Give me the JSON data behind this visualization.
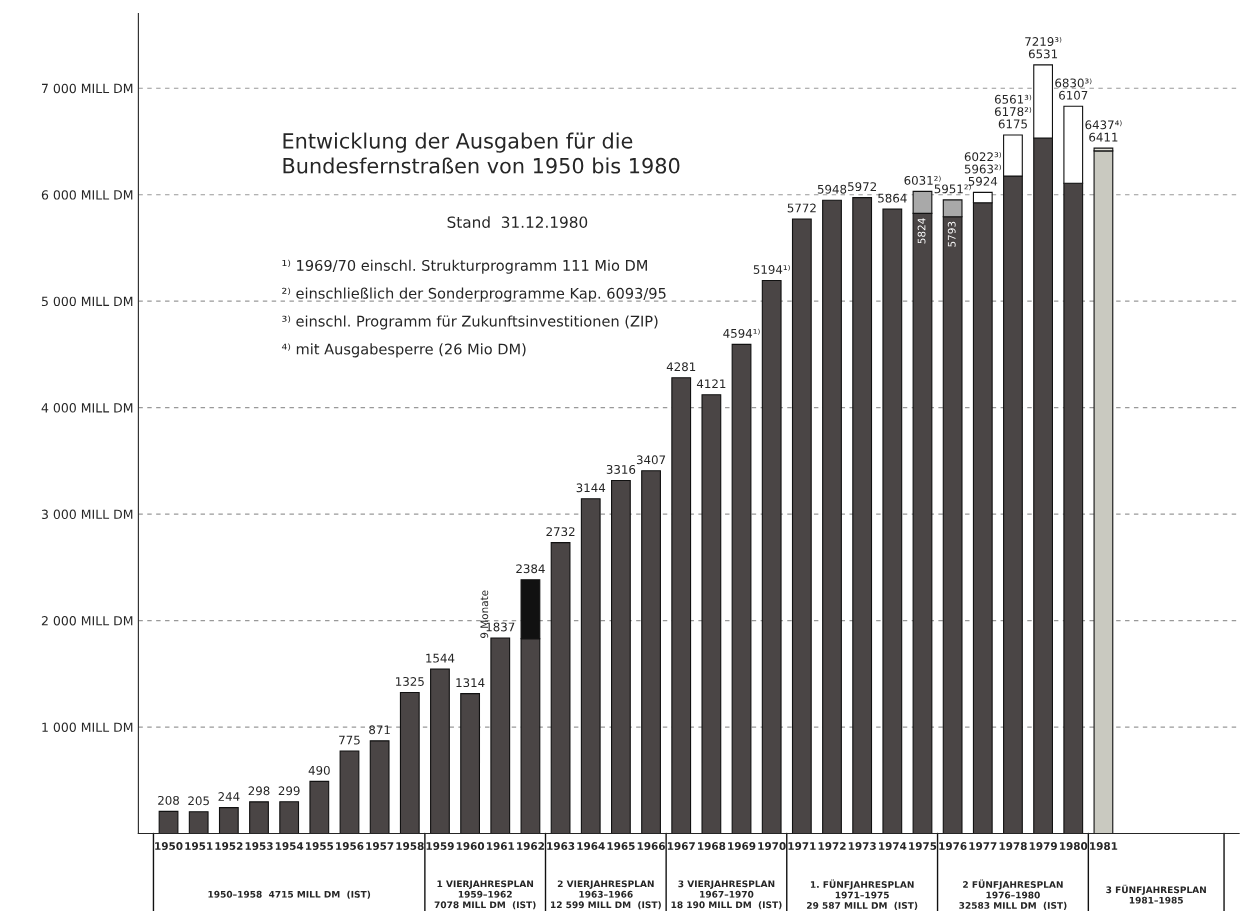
{
  "chart_data": {
    "type": "bar",
    "stacked": true,
    "title": "Entwicklung der Ausgaben für die\nBundesfernstraßen von 1950 bis 1980",
    "subtitle": "Stand  31.12.1980",
    "categories": [
      "1950",
      "1951",
      "1952",
      "1953",
      "1954",
      "1955",
      "1956",
      "1957",
      "1958",
      "1959",
      "1960",
      "1961",
      "1962",
      "1963",
      "1964",
      "1965",
      "1966",
      "1967",
      "1968",
      "1969",
      "1970",
      "1971",
      "1972",
      "1973",
      "1974",
      "1975",
      "1976",
      "1977",
      "1978",
      "1979",
      "1980",
      "1981"
    ],
    "series": [
      {
        "colors": [
          "#4a4545",
          "#4a4545",
          "#4a4545",
          "#4a4545",
          "#4a4545",
          "#4a4545",
          "#4a4545",
          "#4a4545",
          "#4a4545",
          "#4a4545",
          "#4a4545",
          "#4a4545",
          "#4a4545",
          "#4a4545",
          "#4a4545",
          "#4a4545",
          "#4a4545",
          "#4a4545",
          "#4a4545",
          "#4a4545",
          "#4a4545",
          "#4a4545",
          "#4a4545",
          "#4a4545",
          "#4a4545",
          "#4a4545",
          "#4a4545",
          "#4a4545",
          "#4a4545",
          "#4a4545",
          "#4a4545",
          "#c9c9c0"
        ],
        "values": [
          208,
          205,
          244,
          298,
          299,
          490,
          775,
          871,
          1325,
          1544,
          1314,
          1837,
          1830,
          2732,
          3144,
          3316,
          3407,
          4281,
          4121,
          4594,
          5194,
          5772,
          5948,
          5972,
          5864,
          5824,
          5793,
          5924,
          6175,
          6531,
          6107,
          6411
        ],
        "value_labels": [
          "208",
          "205",
          "244",
          "298",
          "299",
          "490",
          "775",
          "871",
          "1325",
          "1544",
          "1314",
          "1837",
          null,
          "2732",
          "3144",
          "3316",
          "3407",
          "4281",
          "4121",
          "4594¹⁾",
          "5194¹⁾",
          "5772",
          "5948",
          "5972",
          "5864",
          "5824",
          "5793",
          null,
          null,
          null,
          null,
          null
        ]
      },
      {
        "colors": [
          "#ffffff",
          "#ffffff",
          "#ffffff",
          "#ffffff",
          "#ffffff",
          "#ffffff",
          "#ffffff",
          "#ffffff",
          "#ffffff",
          "#ffffff",
          "#ffffff",
          "#ffffff",
          "#111111",
          "#ffffff",
          "#ffffff",
          "#ffffff",
          "#ffffff",
          "#ffffff",
          "#ffffff",
          "#ffffff",
          "#ffffff",
          "#ffffff",
          "#ffffff",
          "#ffffff",
          "#ffffff",
          "#a9a9a9",
          "#a9a9a9",
          "#ffffff",
          "#ffffff",
          "#ffffff",
          "#ffffff",
          "#e8e8e0"
        ],
        "values": [
          null,
          null,
          null,
          null,
          null,
          null,
          null,
          null,
          null,
          null,
          null,
          null,
          554,
          null,
          null,
          null,
          null,
          null,
          null,
          null,
          null,
          null,
          null,
          null,
          null,
          207,
          158,
          98,
          386,
          688,
          723,
          26
        ]
      }
    ],
    "ylim": [
      0,
      7700
    ],
    "yticks": [
      {
        "value": 1000,
        "label": "1 000 MILL DM"
      },
      {
        "value": 2000,
        "label": "2 000 MILL DM"
      },
      {
        "value": 3000,
        "label": "3 000 MILL DM"
      },
      {
        "value": 4000,
        "label": "4 000 MILL DM"
      },
      {
        "value": 5000,
        "label": "5 000 MILL DM"
      },
      {
        "value": 6000,
        "label": "6 000 MILL DM"
      },
      {
        "value": 7000,
        "label": "7 000 MILL DM"
      }
    ],
    "grid": "y",
    "legend": false,
    "annotations": [
      "¹⁾ 1969/70 einschl. Strukturprogramm 111 Mio DM",
      "²⁾ einschließlich der Sonderprogramme Kap. 6093/95",
      "³⁾ einschl. Programm für Zukunftsinvestitionen (ZIP)",
      "⁴⁾ mit Ausgabesperre (26 Mio DM)",
      "9 Monate",
      "1950–1958  4715 MILL DM  (IST)",
      "1 VIERJAHRESPLAN\n1959–1962\n7078 MILL DM  (IST)",
      "2 VIERJAHRESPLAN\n1963–1966\n12 599 MILL DM  (IST)",
      "3 VIERJAHRESPLAN\n1967–1970\n18 190 MILL DM  (IST)",
      "1. FÜNFJAHRESPLAN\n1971–1975\n29 587 MILL DM  (IST)",
      "2 FÜNFJAHRESPLAN\n1976–1980\n32583 MILL DM  (IST)",
      "3 FÜNFJAHRESPLAN\n1981–1985",
      {
        "text": "2384",
        "x": "1962",
        "y": 2384
      },
      {
        "text": "6031²⁾",
        "x": "1975",
        "y": 6031
      },
      {
        "text": "5951²⁾",
        "x": "1976",
        "y": 5951
      },
      {
        "text": "6022³⁾\n5963²⁾\n5924",
        "x": "1977",
        "y": 6022
      },
      {
        "text": "6561³⁾\n6178²⁾\n6175",
        "x": "1978",
        "y": 6561
      },
      {
        "text": "7219³⁾\n6531",
        "x": "1979",
        "y": 7219
      },
      {
        "text": "6830³⁾\n6107",
        "x": "1980",
        "y": 6830
      },
      {
        "text": "6437⁴⁾\n6411",
        "x": "1981",
        "y": 6437
      }
    ]
  }
}
